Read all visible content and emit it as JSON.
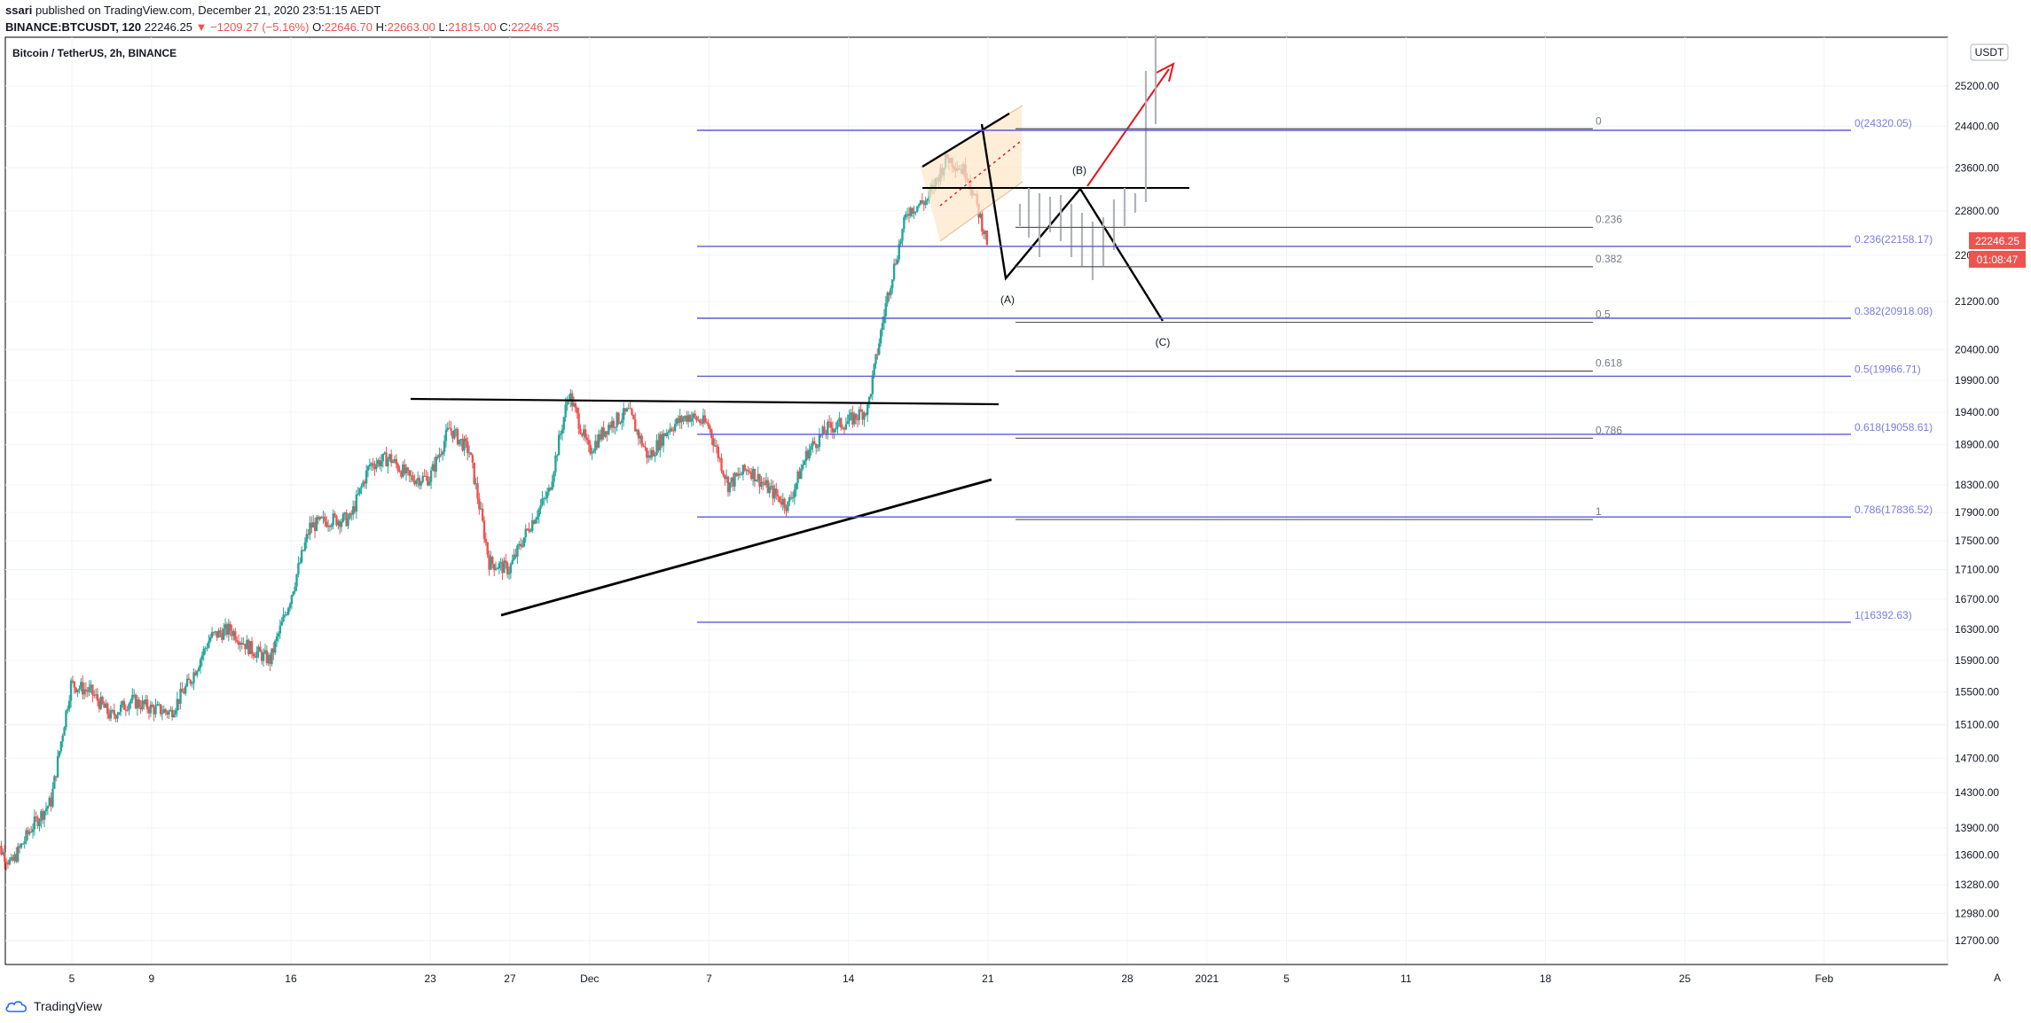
{
  "header": {
    "publisher_user": "ssari",
    "publisher_text": " published on TradingView.com, December 21, 2020 23:51:15 AEDT",
    "symbol_line": {
      "symbol": "BINANCE:BTCUSDT, 120",
      "last": "22246.25",
      "change": "−1209.27 (−5.16%)",
      "o_label": "O:",
      "o": "22646.70",
      "h_label": "H:",
      "h": "22663.00",
      "l_label": "L:",
      "l": "21815.00",
      "c_label": "C:",
      "c": "22246.25"
    }
  },
  "legend_title": "Bitcoin / TetherUS, 2h, BINANCE",
  "currency_badge": "USDT",
  "price_badge": "22246.25",
  "countdown_badge": "01:08:47",
  "auto_scale_label": "A",
  "footer_brand": "TradingView",
  "colors": {
    "up": "#26a69a",
    "down": "#ef5350",
    "fib": "#5b5bd6",
    "fib_label": "#7b7be0",
    "projection": "#555555",
    "red_arrow": "#e3141b",
    "channel_fill": "#fde7c8"
  },
  "chart_data": {
    "type": "candlestick",
    "title": "Bitcoin / TetherUS, 2h, BINANCE",
    "y_axis": {
      "min": 12500,
      "max": 25650,
      "scale": "log",
      "ticks": [
        25200,
        24400,
        23600,
        22800,
        22000,
        21200,
        20400,
        19900,
        19400,
        18900,
        18300,
        17900,
        17500,
        17100,
        16700,
        16300,
        15900,
        15500,
        15100,
        14700,
        14300,
        13900,
        13600,
        13280,
        12980,
        12700
      ]
    },
    "x_axis": {
      "ticks": [
        {
          "label": "5",
          "date": "2020-11-05"
        },
        {
          "label": "9",
          "date": "2020-11-09"
        },
        {
          "label": "16",
          "date": "2020-11-16"
        },
        {
          "label": "23",
          "date": "2020-11-23"
        },
        {
          "label": "27",
          "date": "2020-11-27"
        },
        {
          "label": "Dec",
          "date": "2020-12-01"
        },
        {
          "label": "7",
          "date": "2020-12-07"
        },
        {
          "label": "14",
          "date": "2020-12-14"
        },
        {
          "label": "21",
          "date": "2020-12-21"
        },
        {
          "label": "28",
          "date": "2020-12-28"
        },
        {
          "label": "2021",
          "date": "2021-01-01"
        },
        {
          "label": "5",
          "date": "2021-01-05"
        },
        {
          "label": "11",
          "date": "2021-01-11"
        },
        {
          "label": "18",
          "date": "2021-01-18"
        },
        {
          "label": "25",
          "date": "2021-01-25"
        },
        {
          "label": "Feb",
          "date": "2021-02-01"
        }
      ]
    },
    "price_path": [
      [
        "2020-11-01",
        13800
      ],
      [
        "2020-11-02",
        13500
      ],
      [
        "2020-11-03",
        13900
      ],
      [
        "2020-11-04",
        14200
      ],
      [
        "2020-11-05",
        15600
      ],
      [
        "2020-11-06",
        15500
      ],
      [
        "2020-11-07",
        15200
      ],
      [
        "2020-11-08",
        15400
      ],
      [
        "2020-11-09",
        15300
      ],
      [
        "2020-11-10",
        15250
      ],
      [
        "2020-11-11",
        15650
      ],
      [
        "2020-11-12",
        16200
      ],
      [
        "2020-11-13",
        16300
      ],
      [
        "2020-11-14",
        16050
      ],
      [
        "2020-11-15",
        15900
      ],
      [
        "2020-11-16",
        16700
      ],
      [
        "2020-11-17",
        17700
      ],
      [
        "2020-11-18",
        17800
      ],
      [
        "2020-11-19",
        17800
      ],
      [
        "2020-11-20",
        18600
      ],
      [
        "2020-11-21",
        18700
      ],
      [
        "2020-11-22",
        18400
      ],
      [
        "2020-11-23",
        18400
      ],
      [
        "2020-11-24",
        19150
      ],
      [
        "2020-11-25",
        18800
      ],
      [
        "2020-11-26",
        17200
      ],
      [
        "2020-11-27",
        17100
      ],
      [
        "2020-11-28",
        17700
      ],
      [
        "2020-11-29",
        18200
      ],
      [
        "2020-11-30",
        19700
      ],
      [
        "2020-12-01",
        18800
      ],
      [
        "2020-12-02",
        19200
      ],
      [
        "2020-12-03",
        19400
      ],
      [
        "2020-12-04",
        18700
      ],
      [
        "2020-12-05",
        19150
      ],
      [
        "2020-12-06",
        19350
      ],
      [
        "2020-12-07",
        19200
      ],
      [
        "2020-12-08",
        18300
      ],
      [
        "2020-12-09",
        18550
      ],
      [
        "2020-12-10",
        18250
      ],
      [
        "2020-12-11",
        18000
      ],
      [
        "2020-12-12",
        18800
      ],
      [
        "2020-12-13",
        19150
      ],
      [
        "2020-12-14",
        19250
      ],
      [
        "2020-12-15",
        19450
      ],
      [
        "2020-12-16",
        21300
      ],
      [
        "2020-12-17",
        22800
      ],
      [
        "2020-12-18",
        23000
      ],
      [
        "2020-12-19",
        23800
      ],
      [
        "2020-12-20",
        23500
      ],
      [
        "2020-12-21",
        22246
      ]
    ],
    "fib_retracement_1": {
      "levels": [
        {
          "label": "0(24320.05)",
          "ratio": 0,
          "price": 24320.05
        },
        {
          "label": "0.236(22158.17)",
          "ratio": 0.236,
          "price": 22158.17
        },
        {
          "label": "0.382(20918.08)",
          "ratio": 0.382,
          "price": 20918.08
        },
        {
          "label": "0.5(19966.71)",
          "ratio": 0.5,
          "price": 19966.71
        },
        {
          "label": "0.618(19058.61)",
          "ratio": 0.618,
          "price": 19058.61
        },
        {
          "label": "0.786(17836.52)",
          "ratio": 0.786,
          "price": 17836.52
        },
        {
          "label": "1(16392.63)",
          "ratio": 1,
          "price": 16392.63
        }
      ]
    },
    "fib_retracement_2": {
      "levels": [
        {
          "label": "0",
          "price": 24350
        },
        {
          "label": "0.236",
          "price": 22500
        },
        {
          "label": "0.382",
          "price": 21800
        },
        {
          "label": "0.5",
          "price": 20850
        },
        {
          "label": "0.618",
          "price": 20050
        },
        {
          "label": "0.786",
          "price": 19000
        },
        {
          "label": "1",
          "price": 17800
        }
      ]
    },
    "annotations": {
      "wave_labels": [
        "(A)",
        "(B)",
        "(C)"
      ]
    }
  }
}
